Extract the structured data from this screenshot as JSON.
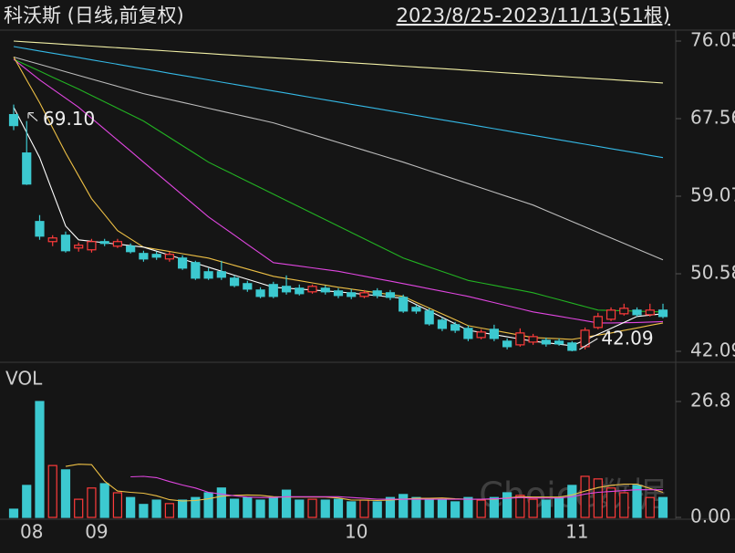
{
  "watermark": "Choice数据",
  "chart_data": [
    {
      "type": "candlestick",
      "title": "科沃斯 (日线,前复权)",
      "subtitle": "2023/8/25-2023/11/13(51根)",
      "high_label": "69.10",
      "low_label": "42.09",
      "up_color": "#ff3b3b",
      "down_color": "#3cc9d0",
      "ylim": [
        40.89,
        77.25
      ],
      "yticks": [
        76.05,
        67.56,
        59.07,
        50.58,
        42.09
      ],
      "grid": false,
      "open": [
        68.0,
        63.8,
        56.3,
        54.1,
        54.8,
        53.4,
        53.2,
        54.1,
        53.6,
        53.6,
        52.8,
        52.7,
        52.2,
        52.3,
        51.8,
        50.8,
        50.8,
        50.1,
        49.5,
        48.8,
        49.4,
        49.2,
        49.0,
        48.6,
        49.0,
        48.7,
        48.5,
        48.1,
        48.7,
        48.5,
        48.0,
        46.9,
        46.5,
        45.5,
        45.0,
        44.6,
        43.6,
        44.5,
        43.2,
        42.8,
        43.1,
        43.3,
        43.2,
        43.0,
        42.6,
        44.7,
        45.6,
        46.2,
        46.6,
        46.1,
        46.6
      ],
      "high": [
        69.1,
        67.3,
        57.0,
        54.8,
        55.2,
        54.0,
        54.4,
        54.4,
        54.4,
        53.9,
        53.1,
        53.0,
        53.0,
        52.6,
        52.0,
        51.2,
        52.0,
        50.4,
        49.8,
        49.1,
        49.7,
        50.4,
        49.4,
        49.4,
        49.3,
        49.0,
        48.9,
        48.8,
        49.0,
        48.8,
        48.3,
        47.2,
        46.8,
        45.8,
        45.3,
        44.9,
        44.5,
        45.0,
        43.5,
        44.6,
        44.0,
        43.6,
        43.5,
        43.2,
        44.7,
        46.3,
        46.9,
        47.3,
        46.9,
        47.3,
        47.3
      ],
      "low": [
        66.3,
        60.3,
        54.3,
        53.6,
        52.9,
        53.0,
        52.9,
        53.6,
        53.4,
        52.8,
        51.9,
        52.1,
        51.9,
        51.0,
        49.9,
        49.9,
        49.9,
        49.1,
        48.6,
        47.9,
        47.9,
        48.3,
        48.2,
        48.4,
        48.3,
        47.9,
        47.8,
        47.9,
        47.9,
        47.7,
        46.3,
        46.2,
        44.9,
        44.3,
        44.1,
        43.2,
        43.4,
        43.2,
        42.3,
        42.6,
        42.8,
        42.6,
        42.7,
        42.09,
        42.3,
        44.5,
        45.4,
        46.0,
        45.9,
        45.9,
        45.7
      ],
      "close": [
        66.8,
        60.4,
        54.7,
        54.5,
        53.1,
        53.7,
        54.1,
        53.9,
        54.1,
        53.0,
        52.2,
        52.4,
        52.7,
        51.2,
        50.1,
        50.1,
        50.2,
        49.3,
        48.9,
        48.1,
        48.1,
        48.6,
        48.4,
        49.2,
        48.6,
        48.2,
        48.1,
        48.5,
        48.2,
        48.0,
        46.5,
        46.5,
        45.1,
        44.6,
        44.4,
        43.5,
        44.2,
        43.5,
        42.6,
        44.1,
        43.7,
        42.9,
        42.9,
        42.2,
        44.4,
        45.9,
        46.6,
        46.8,
        46.1,
        46.6,
        45.9
      ],
      "lines": [
        {
          "color": "#f2f0a6",
          "values": [
            76.05,
            75.96,
            75.87,
            75.78,
            75.68,
            75.59,
            75.5,
            75.41,
            75.32,
            75.23,
            75.13,
            75.04,
            74.95,
            74.86,
            74.77,
            74.68,
            74.58,
            74.49,
            74.4,
            74.31,
            74.22,
            74.13,
            74.03,
            73.94,
            73.85,
            73.76,
            73.67,
            73.58,
            73.49,
            73.39,
            73.3,
            73.21,
            73.12,
            73.03,
            72.94,
            72.84,
            72.75,
            72.66,
            72.57,
            72.48,
            72.39,
            72.29,
            72.2,
            72.11,
            72.02,
            71.93,
            71.84,
            71.74,
            71.65,
            71.56,
            71.47
          ]
        },
        {
          "color": "#35b9e6",
          "values": [
            75.45,
            75.21,
            74.96,
            74.72,
            74.48,
            74.24,
            73.99,
            73.75,
            73.51,
            73.26,
            73.02,
            72.78,
            72.53,
            72.29,
            72.05,
            71.81,
            71.56,
            71.32,
            71.08,
            70.83,
            70.59,
            70.35,
            70.1,
            69.86,
            69.62,
            69.38,
            69.13,
            68.89,
            68.65,
            68.4,
            68.16,
            67.92,
            67.67,
            67.43,
            67.19,
            66.95,
            66.7,
            66.46,
            66.22,
            65.97,
            65.73,
            65.49,
            65.24,
            65.0,
            64.76,
            64.52,
            64.27,
            64.03,
            63.79,
            63.54,
            63.3
          ]
        },
        {
          "color": "#bdbdbd",
          "values": [
            74.3,
            73.9,
            73.5,
            73.1,
            72.7,
            72.3,
            71.9,
            71.5,
            71.1,
            70.7,
            70.3,
            69.98,
            69.66,
            69.34,
            69.02,
            68.7,
            68.38,
            68.06,
            67.74,
            67.42,
            67.1,
            66.67,
            66.24,
            65.81,
            65.38,
            64.95,
            64.52,
            64.09,
            63.66,
            63.23,
            62.8,
            62.33,
            61.86,
            61.39,
            60.92,
            60.45,
            59.98,
            59.51,
            59.04,
            58.57,
            58.1,
            57.5,
            56.9,
            56.3,
            55.7,
            55.1,
            54.5,
            53.9,
            53.3,
            52.7,
            52.1
          ]
        },
        {
          "color": "#22b322",
          "values": [
            74.06,
            73.41,
            72.76,
            72.1,
            71.45,
            70.8,
            70.1,
            69.4,
            68.7,
            68.0,
            67.3,
            66.4,
            65.5,
            64.6,
            63.7,
            62.8,
            62.1,
            61.4,
            60.7,
            60.0,
            59.3,
            58.6,
            57.9,
            57.2,
            56.5,
            55.8,
            55.1,
            54.4,
            53.7,
            53.0,
            52.3,
            51.81,
            51.32,
            50.83,
            50.34,
            49.85,
            49.58,
            49.31,
            49.04,
            48.77,
            48.5,
            48.12,
            47.74,
            47.36,
            46.98,
            46.6,
            46.56,
            46.52,
            46.48,
            46.44,
            46.4
          ]
        },
        {
          "color": "#e046e0",
          "values": [
            74.06,
            72.93,
            71.8,
            70.8,
            69.8,
            68.8,
            67.6,
            66.4,
            65.2,
            64.0,
            62.8,
            61.6,
            60.4,
            59.2,
            58.0,
            56.8,
            55.8,
            54.8,
            53.8,
            52.8,
            51.8,
            51.61,
            51.42,
            51.23,
            51.04,
            50.85,
            50.58,
            50.31,
            50.04,
            49.77,
            49.5,
            49.22,
            48.94,
            48.66,
            48.38,
            48.1,
            47.76,
            47.42,
            47.08,
            46.74,
            46.4,
            46.16,
            45.92,
            45.68,
            45.44,
            45.2,
            45.2,
            45.22,
            45.25,
            45.3,
            45.35
          ]
        },
        {
          "color": "#eec045",
          "values": [
            74.3,
            71.8,
            69.3,
            66.55,
            63.8,
            61.3,
            58.8,
            57.05,
            55.3,
            54.4,
            53.5,
            53.26,
            53.02,
            52.78,
            52.54,
            52.3,
            51.9,
            51.5,
            51.1,
            50.7,
            50.3,
            50.06,
            49.82,
            49.58,
            49.34,
            49.1,
            48.9,
            48.7,
            48.5,
            48.3,
            48.1,
            47.46,
            46.82,
            46.18,
            45.54,
            44.9,
            44.64,
            44.38,
            44.12,
            43.86,
            43.6,
            43.53,
            43.47,
            43.4,
            43.63,
            43.87,
            44.1,
            44.38,
            44.65,
            44.93,
            45.2
          ]
        },
        {
          "color": "#ffffff",
          "values": [
            68.8,
            66.05,
            63.3,
            59.55,
            55.8,
            54.3,
            54.14,
            53.98,
            53.82,
            53.66,
            53.5,
            53.06,
            52.62,
            52.18,
            51.74,
            51.3,
            50.86,
            50.42,
            49.98,
            49.54,
            49.1,
            49.0,
            48.9,
            48.8,
            48.7,
            48.6,
            48.46,
            48.32,
            48.18,
            48.04,
            47.9,
            47.2,
            46.5,
            45.8,
            45.1,
            44.4,
            44.16,
            43.92,
            43.68,
            43.44,
            43.2,
            43.03,
            42.87,
            42.7,
            43.33,
            43.97,
            44.6,
            45.25,
            45.9,
            46.05,
            46.2
          ]
        }
      ]
    },
    {
      "type": "bar",
      "title": "VOL",
      "categories": [
        "08",
        null,
        null,
        null,
        null,
        "09",
        null,
        null,
        null,
        null,
        null,
        null,
        null,
        null,
        null,
        null,
        null,
        null,
        null,
        null,
        null,
        null,
        null,
        null,
        null,
        "10",
        null,
        null,
        null,
        null,
        null,
        null,
        null,
        null,
        null,
        null,
        null,
        null,
        null,
        null,
        null,
        null,
        "11",
        null,
        null,
        null,
        null,
        null,
        null,
        null,
        null
      ],
      "values": [
        1.9,
        7.4,
        26.8,
        12.0,
        11.0,
        4.2,
        6.8,
        7.8,
        5.7,
        4.6,
        3.0,
        4.0,
        3.2,
        4.0,
        4.6,
        5.7,
        6.8,
        4.2,
        4.6,
        4.0,
        4.6,
        6.3,
        4.0,
        4.2,
        4.0,
        4.2,
        3.6,
        4.0,
        3.6,
        4.6,
        5.3,
        4.6,
        4.0,
        4.0,
        3.6,
        4.6,
        4.0,
        4.6,
        5.7,
        5.1,
        4.2,
        4.0,
        4.6,
        7.4,
        9.5,
        8.9,
        6.8,
        5.7,
        7.4,
        4.6,
        4.6
      ],
      "ylim": [
        0,
        26.8
      ],
      "yticks": [
        26.8,
        {
          "value": 0,
          "label": "0.00"
        }
      ],
      "lines": [
        {
          "color": "#eec045",
          "values": [
            null,
            null,
            null,
            null,
            11.8,
            12.3,
            12.2,
            8.4,
            6.1,
            5.8,
            5.6,
            5.0,
            4.1,
            3.8,
            3.9,
            4.3,
            4.9,
            5.1,
            5.2,
            5.1,
            4.8,
            4.7,
            4.7,
            4.7,
            4.7,
            4.5,
            4.0,
            4.0,
            3.9,
            4.0,
            4.2,
            4.4,
            4.4,
            4.5,
            4.3,
            4.2,
            4.2,
            4.2,
            4.5,
            4.8,
            4.7,
            4.7,
            4.7,
            5.2,
            6.1,
            6.9,
            7.4,
            7.7,
            7.7,
            6.7,
            5.8
          ]
        },
        {
          "color": "#e046e0",
          "values": [
            null,
            null,
            null,
            null,
            null,
            null,
            null,
            null,
            null,
            9.4,
            9.5,
            9.2,
            8.3,
            7.5,
            6.8,
            5.8,
            5.4,
            5.0,
            4.7,
            4.6,
            4.6,
            4.8,
            4.8,
            4.8,
            4.8,
            4.8,
            4.6,
            4.4,
            4.2,
            4.2,
            4.2,
            4.2,
            4.2,
            4.2,
            4.2,
            4.2,
            4.2,
            4.3,
            4.4,
            4.6,
            4.5,
            4.5,
            4.5,
            4.8,
            5.4,
            5.8,
            6.0,
            6.2,
            6.4,
            6.4,
            6.4
          ]
        }
      ]
    }
  ]
}
